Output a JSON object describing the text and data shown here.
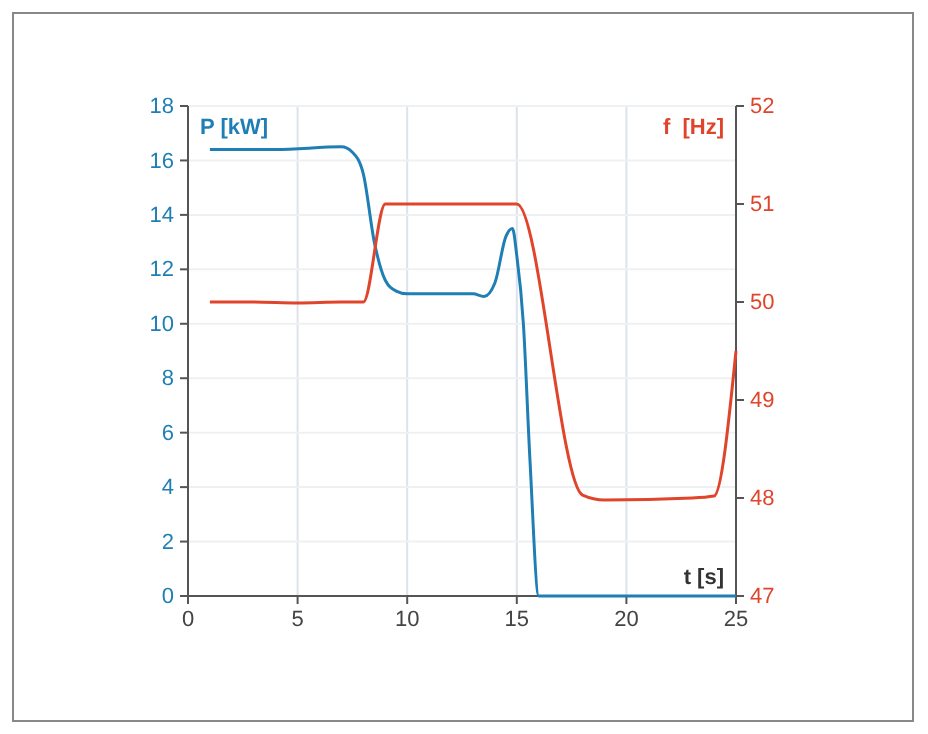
{
  "chart_data": {
    "type": "line",
    "xlabel": "t [s]",
    "ylabel": "P [kW]",
    "y2label": "f  [Hz]",
    "xlim": [
      0,
      25
    ],
    "xticks": [
      0,
      5,
      10,
      15,
      20,
      25
    ],
    "ylim": [
      0,
      18
    ],
    "yticks": [
      0,
      2,
      4,
      6,
      8,
      10,
      12,
      14,
      16,
      18
    ],
    "y2lim": [
      47,
      52
    ],
    "y2ticks": [
      47,
      48,
      49,
      50,
      51,
      52
    ],
    "grid": true,
    "series": [
      {
        "color": "#1f7fb4",
        "x": [
          1,
          4,
          7,
          7.5,
          8,
          8.5,
          9,
          9.5,
          10,
          11,
          13,
          13.5,
          14,
          14.5,
          14.8,
          15,
          15.3,
          15.6,
          16,
          17,
          25
        ],
        "values": [
          16.4,
          16.4,
          16.5,
          16.3,
          15.5,
          13,
          11.6,
          11.2,
          11.1,
          11.1,
          11.1,
          11,
          11.5,
          13.2,
          13.5,
          12.5,
          10,
          5,
          0,
          0,
          0
        ]
      },
      {
        "color": "#e0452c",
        "axis": "y2",
        "x": [
          1,
          3,
          5,
          7,
          8,
          9,
          15,
          18,
          19,
          23,
          24,
          25
        ],
        "values": [
          50,
          50,
          49.99,
          50,
          50,
          51,
          51,
          48.03,
          47.98,
          48,
          48.02,
          49.5
        ]
      }
    ]
  }
}
